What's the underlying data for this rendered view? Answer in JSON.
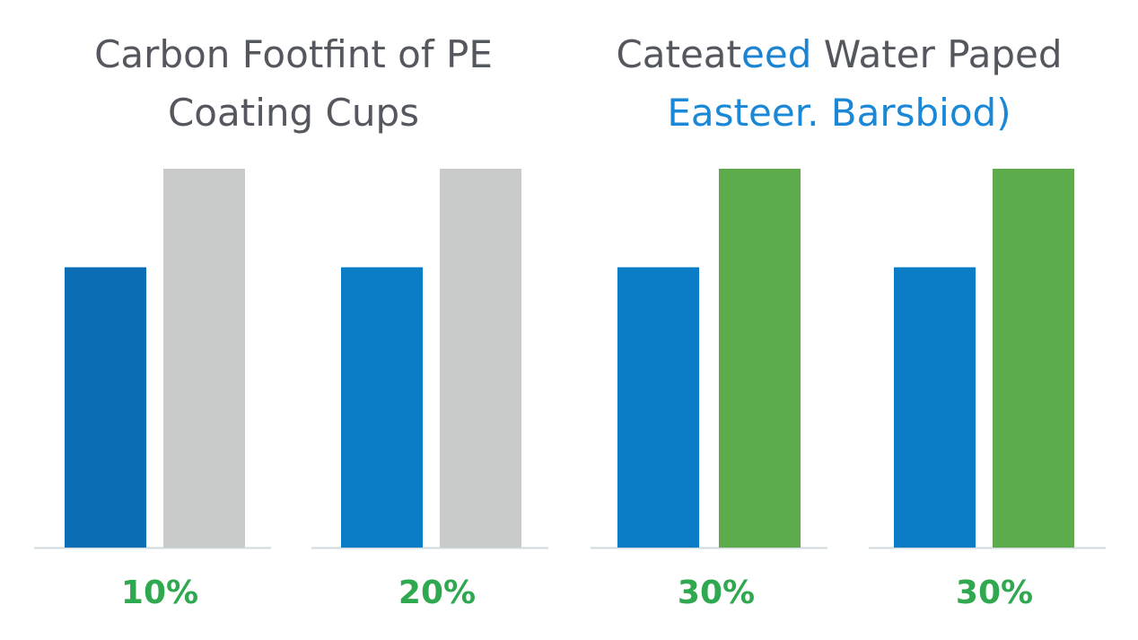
{
  "chart_data": {
    "type": "bar",
    "titles": [
      {
        "lines": [
          [
            {
              "text": "Carbon Footfint of PE",
              "color": "#54585e"
            }
          ],
          [
            {
              "text": "Coating Cups",
              "color": "#54585e"
            }
          ]
        ]
      },
      {
        "lines": [
          [
            {
              "text": "Cateat",
              "color": "#54585e"
            },
            {
              "text": "eed",
              "color": "#1a84d2"
            },
            {
              "text": " Water Paped",
              "color": "#54585e"
            }
          ],
          [
            {
              "text": "Easteer. Barsbiod)",
              "color": "#1a88d6"
            }
          ]
        ]
      }
    ],
    "categories": [
      "10%",
      "20%",
      "30%",
      "30%"
    ],
    "category_color": "#2fa84f",
    "series": [
      {
        "colors": [
          "#0b6db4",
          "#0a7dc6",
          "#0a7dc6",
          "#0a7dc6"
        ],
        "values": [
          74,
          74,
          74,
          74
        ]
      },
      {
        "colors": [
          "#c9caca",
          "#c9caca",
          "#5dab4a",
          "#5dab4a"
        ],
        "values": [
          100,
          100,
          100,
          100
        ]
      }
    ],
    "ylim": [
      0,
      100
    ]
  }
}
